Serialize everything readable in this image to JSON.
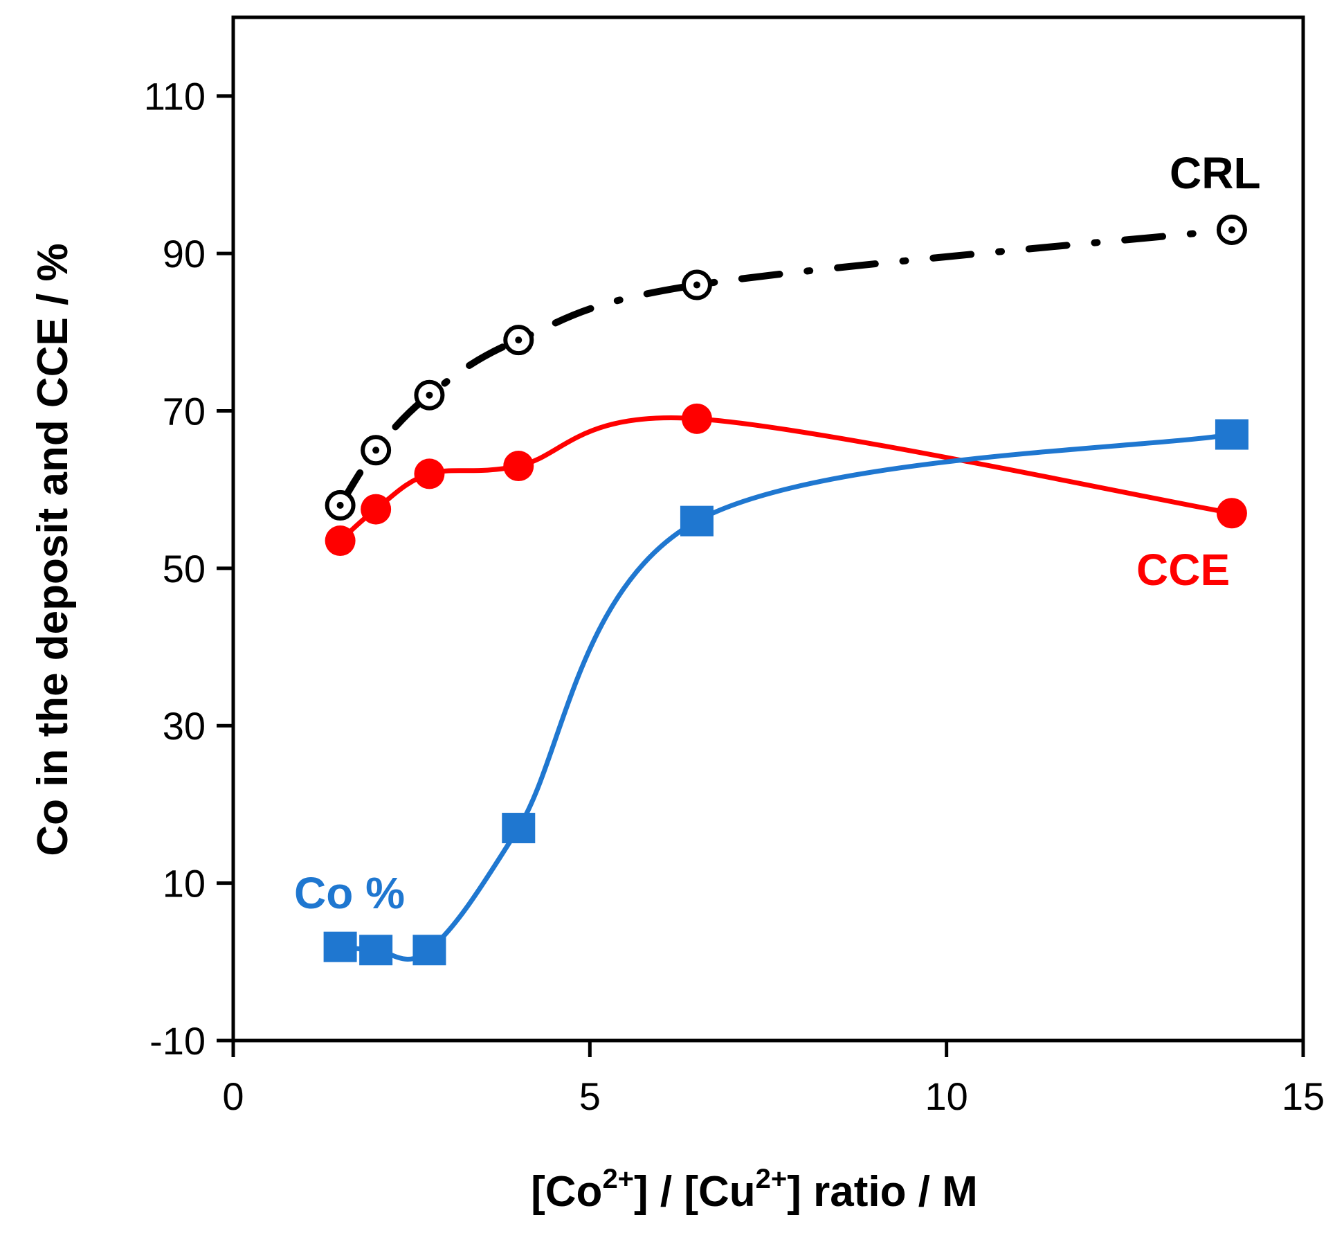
{
  "chart_data": {
    "type": "line",
    "title": "",
    "xlabel": {
      "open": "[Co",
      "sup1": "2+",
      "mid": "] / [Cu",
      "sup2": "2+",
      "close": "] ratio / M"
    },
    "ylabel": "Co in the deposit and CCE / %",
    "xlim": [
      0,
      15
    ],
    "ylim": [
      -10,
      120
    ],
    "x_ticks": [
      {
        "value": 0,
        "label": "0"
      },
      {
        "value": 5,
        "label": "5"
      },
      {
        "value": 10,
        "label": "10"
      },
      {
        "value": 15,
        "label": "15"
      }
    ],
    "y_ticks": [
      {
        "value": -10,
        "label": "-10"
      },
      {
        "value": 10,
        "label": "10"
      },
      {
        "value": 30,
        "label": "30"
      },
      {
        "value": 50,
        "label": "50"
      },
      {
        "value": 70,
        "label": "70"
      },
      {
        "value": 90,
        "label": "90"
      },
      {
        "value": 110,
        "label": "110"
      }
    ],
    "grid": false,
    "series": [
      {
        "name": "CRL",
        "label": "CRL",
        "color": "#000000",
        "marker": "open-circle-dot",
        "line": "dash-dot",
        "x": [
          1.5,
          2.0,
          2.75,
          4.0,
          6.5,
          14.0
        ],
        "values": [
          58,
          65,
          72,
          79,
          86,
          93
        ]
      },
      {
        "name": "CCE",
        "label": "CCE",
        "color": "#ff0000",
        "marker": "filled-circle",
        "line": "solid",
        "x": [
          1.5,
          2.0,
          2.75,
          4.0,
          6.5,
          14.0
        ],
        "values": [
          53.5,
          57.5,
          62,
          63,
          69,
          57
        ]
      },
      {
        "name": "Co %",
        "label": "Co %",
        "color": "#1f77d0",
        "marker": "filled-square",
        "line": "solid",
        "x": [
          1.5,
          2.0,
          2.75,
          4.0,
          6.5,
          14.0
        ],
        "values": [
          1.9,
          1.5,
          1.5,
          17,
          56,
          67
        ]
      }
    ]
  }
}
